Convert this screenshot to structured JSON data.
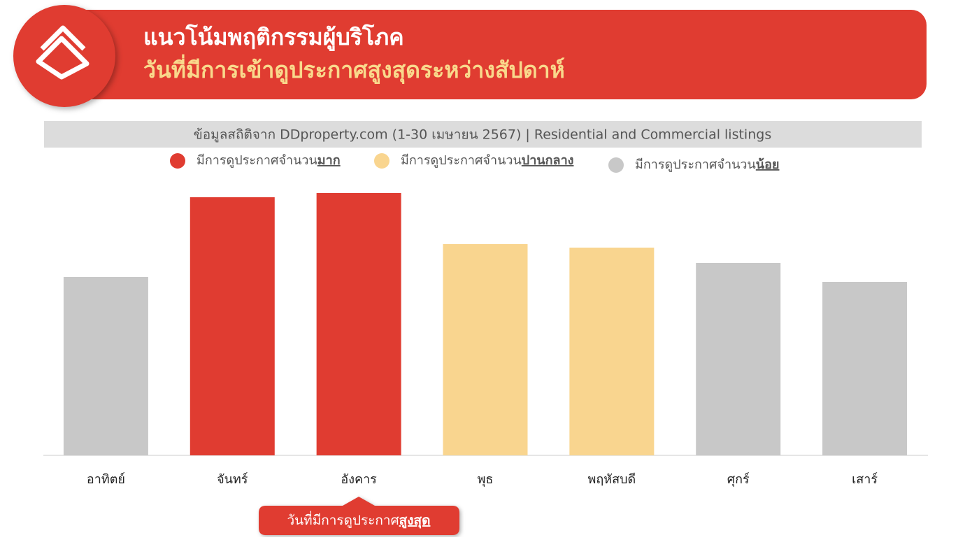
{
  "header": {
    "title": "แนวโน้มพฤติกรรมผู้บริโภค",
    "subtitle": "วันที่มีการเข้าดูประกาศสูงสุดระหว่างสัปดาห์"
  },
  "chart_data": {
    "type": "bar",
    "source": "ข้อมูลสถิติจาก DDproperty.com (1-30 เมษายน 2567) | Residential and Commercial listings",
    "legend": [
      {
        "text": "มีการดูประกาศจำนวน",
        "emphasis": "มาก",
        "color": "#e03c31"
      },
      {
        "text": "มีการดูประกาศจำนวน",
        "emphasis": "ปานกลาง",
        "color": "#f9d58f"
      },
      {
        "text": "มีการดูประกาศจำนวน",
        "emphasis": "น้อย",
        "color": "#c8c8c8"
      }
    ],
    "categories": [
      "อาทิตย์",
      "จันทร์",
      "อังคาร",
      "พุธ",
      "พฤหัสบดี",
      "ศุกร์",
      "เสาร์"
    ],
    "values": [
      255,
      369,
      375,
      302,
      297,
      275,
      248
    ],
    "colors": [
      "#c8c8c8",
      "#e03c31",
      "#e03c31",
      "#f9d58f",
      "#f9d58f",
      "#c8c8c8",
      "#c8c8c8"
    ],
    "ylim": [
      0,
      390
    ],
    "callout": {
      "text": "วันที่มีการดูประกาศ",
      "emphasis": "สูงสุด"
    }
  }
}
